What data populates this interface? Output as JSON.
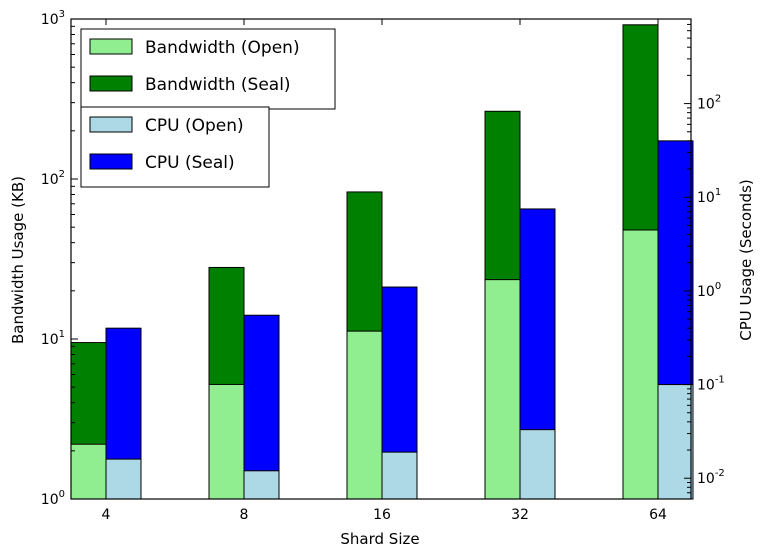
{
  "chart_data": {
    "type": "bar",
    "categories": [
      "4",
      "8",
      "16",
      "32",
      "64"
    ],
    "xlabel": "Shard Size",
    "left_axis": {
      "label": "Bandwidth Usage (KB)",
      "scale": "log",
      "ylim": [
        1,
        1000
      ],
      "ticks": [
        {
          "base": "10",
          "exp": "0"
        },
        {
          "base": "10",
          "exp": "1"
        },
        {
          "base": "10",
          "exp": "2"
        },
        {
          "base": "10",
          "exp": "3"
        }
      ]
    },
    "right_axis": {
      "label": "CPU Usage (Seconds)",
      "scale": "log",
      "ylim": [
        0.006,
        800
      ],
      "ticks": [
        {
          "base": "10",
          "exp": "-2",
          "value": 0.01
        },
        {
          "base": "10",
          "exp": "-1",
          "value": 0.1
        },
        {
          "base": "10",
          "exp": "0",
          "value": 1
        },
        {
          "base": "10",
          "exp": "1",
          "value": 10
        },
        {
          "base": "10",
          "exp": "2",
          "value": 100
        }
      ]
    },
    "series": [
      {
        "name": "Bandwidth (Open)",
        "axis": "left",
        "color": "#90ee90",
        "values": [
          2.2,
          5.2,
          11.2,
          23.5,
          48
        ]
      },
      {
        "name": "Bandwidth (Seal)",
        "axis": "left",
        "color": "#008000",
        "values": [
          9.5,
          28,
          83,
          265,
          920
        ]
      },
      {
        "name": "CPU (Open)",
        "axis": "right",
        "color": "#add8e6",
        "values": [
          0.016,
          0.012,
          0.019,
          0.033,
          0.1
        ]
      },
      {
        "name": "CPU (Seal)",
        "axis": "right",
        "color": "#0000ff",
        "values": [
          0.4,
          0.55,
          1.1,
          7.5,
          40
        ]
      }
    ],
    "legends": [
      {
        "location": "upper-left",
        "entries": [
          "Bandwidth (Open)",
          "Bandwidth (Seal)"
        ]
      },
      {
        "location": "upper-left-below",
        "entries": [
          "CPU (Open)",
          "CPU (Seal)"
        ]
      }
    ],
    "grid": false
  }
}
